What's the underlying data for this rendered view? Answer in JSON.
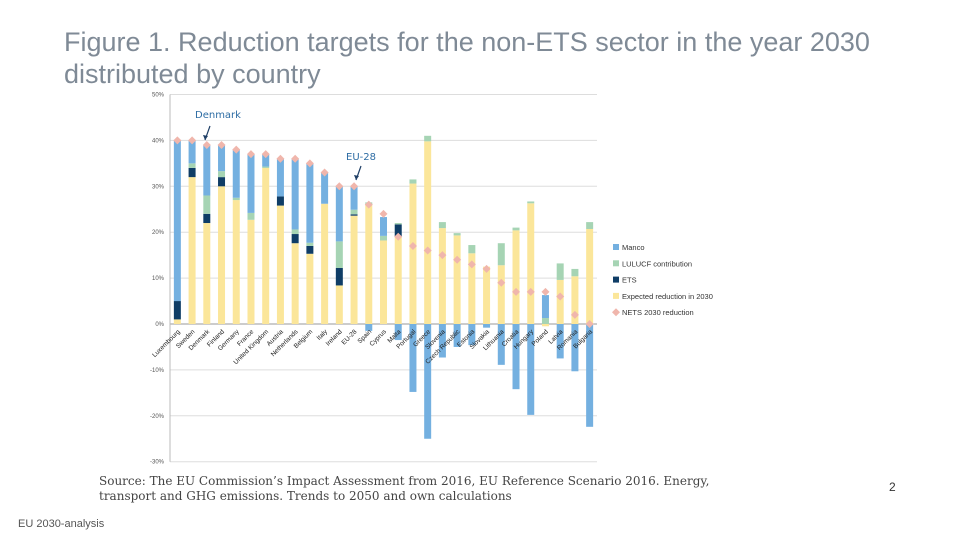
{
  "title": "Figure 1. Reduction targets for the non-ETS sector in the year 2030 distributed by country",
  "source": "Source:  The EU Commission’s Impact Assessment from 2016, EU Reference Scenario 2016. Energy, transport and GHG emissions. Trends to 2050 and own calculations",
  "page_number": "2",
  "footer": "EU 2030-analysis",
  "chart_data": {
    "type": "bar",
    "stacked": true,
    "ylim": [
      -30,
      50
    ],
    "yticks": [
      -30,
      -20,
      -10,
      0,
      10,
      20,
      30,
      40,
      50
    ],
    "ytick_labels": [
      "-30%",
      "-20%",
      "-10%",
      "0%",
      "10%",
      "20%",
      "30%",
      "40%",
      "50%"
    ],
    "grid": true,
    "legend_position": "right",
    "categories": [
      "Luxembourg",
      "Sweden",
      "Denmark",
      "Finland",
      "Germany",
      "France",
      "United Kingdom",
      "Austria",
      "Netherlands",
      "Belgium",
      "Italy",
      "Ireland",
      "EU-28",
      "Spain",
      "Cyprus",
      "Malta",
      "Portugal",
      "Greece",
      "Slovenia",
      "Czech Republic",
      "Estonia",
      "Slovakia",
      "Lithuania",
      "Croatia",
      "Hungary",
      "Poland",
      "Latvia",
      "Romania",
      "Bulgaria"
    ],
    "series": [
      {
        "name": "Expected reduction in 2030",
        "color": "#fbe69a",
        "values": [
          1,
          32,
          22,
          30,
          27,
          22.7,
          34,
          25.8,
          17.6,
          15.3,
          26.2,
          8.4,
          23.6,
          26,
          18.2,
          19,
          30.6,
          39.8,
          20.9,
          19.3,
          15.4,
          12.5,
          12.8,
          20.4,
          26.3,
          -0.5,
          9.6,
          10.4,
          20.7
        ]
      },
      {
        "name": "ETS",
        "color": "#0f3d66",
        "values": [
          4,
          2,
          2,
          2,
          0,
          0,
          0,
          2,
          2,
          1.7,
          0,
          3.8,
          0.3,
          0,
          0,
          2.7,
          0,
          0,
          0,
          0,
          0,
          0,
          0,
          0,
          0,
          0,
          0,
          0,
          0
        ]
      },
      {
        "name": "LULUCF contribution",
        "color": "#a6d4b4",
        "values": [
          0,
          1,
          4,
          1.3,
          0.5,
          1.5,
          0.3,
          0,
          1,
          0.7,
          0,
          5.8,
          1,
          0.5,
          1,
          0.3,
          0.9,
          1.2,
          1.3,
          0.5,
          1.8,
          0,
          4.8,
          0.6,
          0.4,
          1.3,
          3.6,
          1.6,
          1.5
        ]
      },
      {
        "name": "Manco",
        "color": "#74b0e0",
        "values": [
          35,
          5,
          11,
          5.7,
          10.5,
          12.8,
          2.7,
          8.2,
          15.4,
          17.3,
          6.8,
          12,
          5.1,
          -1.5,
          4.1,
          -3.5,
          -14.8,
          -25,
          -7.3,
          -5,
          -4.6,
          -0.8,
          -8.9,
          -14.2,
          -19.8,
          5,
          -7.5,
          -10.3,
          -22.4
        ]
      }
    ],
    "markers": {
      "name": "NETS 2030 reduction",
      "color": "#f0b6ac",
      "shape": "diamond",
      "values": [
        40,
        40,
        39,
        39,
        38,
        37,
        37,
        36,
        36,
        35,
        33,
        30,
        30,
        26,
        24,
        19,
        17,
        16,
        15,
        14,
        13,
        12,
        9,
        7,
        7,
        7,
        6,
        2,
        0
      ]
    },
    "legend_order": [
      "Manco",
      "LULUCF contribution",
      "ETS",
      "Expected reduction in 2030",
      "NETS 2030 reduction"
    ],
    "annotations": [
      {
        "text": "Denmark",
        "target": "Denmark",
        "color": "#2e6da4"
      },
      {
        "text": "EU-28",
        "target": "EU-28",
        "color": "#2e6da4"
      }
    ]
  }
}
